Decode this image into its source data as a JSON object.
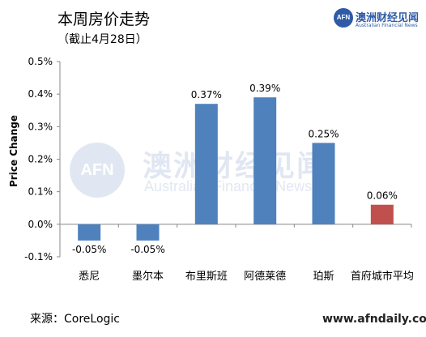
{
  "header": {
    "title": "本周房价走势",
    "subtitle": "（截止4月28日）"
  },
  "logo": {
    "mark": "AFN",
    "name_cn": "澳洲财经见闻",
    "name_en": "Australian Financial News"
  },
  "watermark": {
    "mark": "AFN",
    "name_cn": "澳洲财经见闻",
    "name_en": "Australian Financial News"
  },
  "footer": {
    "source": "来源：CoreLogic",
    "site": "www.afndaily.com"
  },
  "chart_data": {
    "type": "bar",
    "ylabel": "Price Change",
    "categories": [
      "悉尼",
      "墨尔本",
      "布里斯班",
      "阿德莱德",
      "珀斯",
      "首府城市平均"
    ],
    "values": [
      -0.05,
      -0.05,
      0.37,
      0.39,
      0.25,
      0.06
    ],
    "data_labels": [
      "-0.05%",
      "-0.05%",
      "0.37%",
      "0.39%",
      "0.25%",
      "0.06%"
    ],
    "ylim": [
      -0.1,
      0.5
    ],
    "yticks": [
      -0.1,
      0.0,
      0.1,
      0.2,
      0.3,
      0.4,
      0.5
    ],
    "ytick_labels": [
      "-0.1%",
      "0.0%",
      "0.1%",
      "0.2%",
      "0.3%",
      "0.4%",
      "0.5%"
    ],
    "bar_colors": [
      "#4f81bd",
      "#4f81bd",
      "#4f81bd",
      "#4f81bd",
      "#4f81bd",
      "#c0504d"
    ],
    "grid": false,
    "legend": "none"
  }
}
